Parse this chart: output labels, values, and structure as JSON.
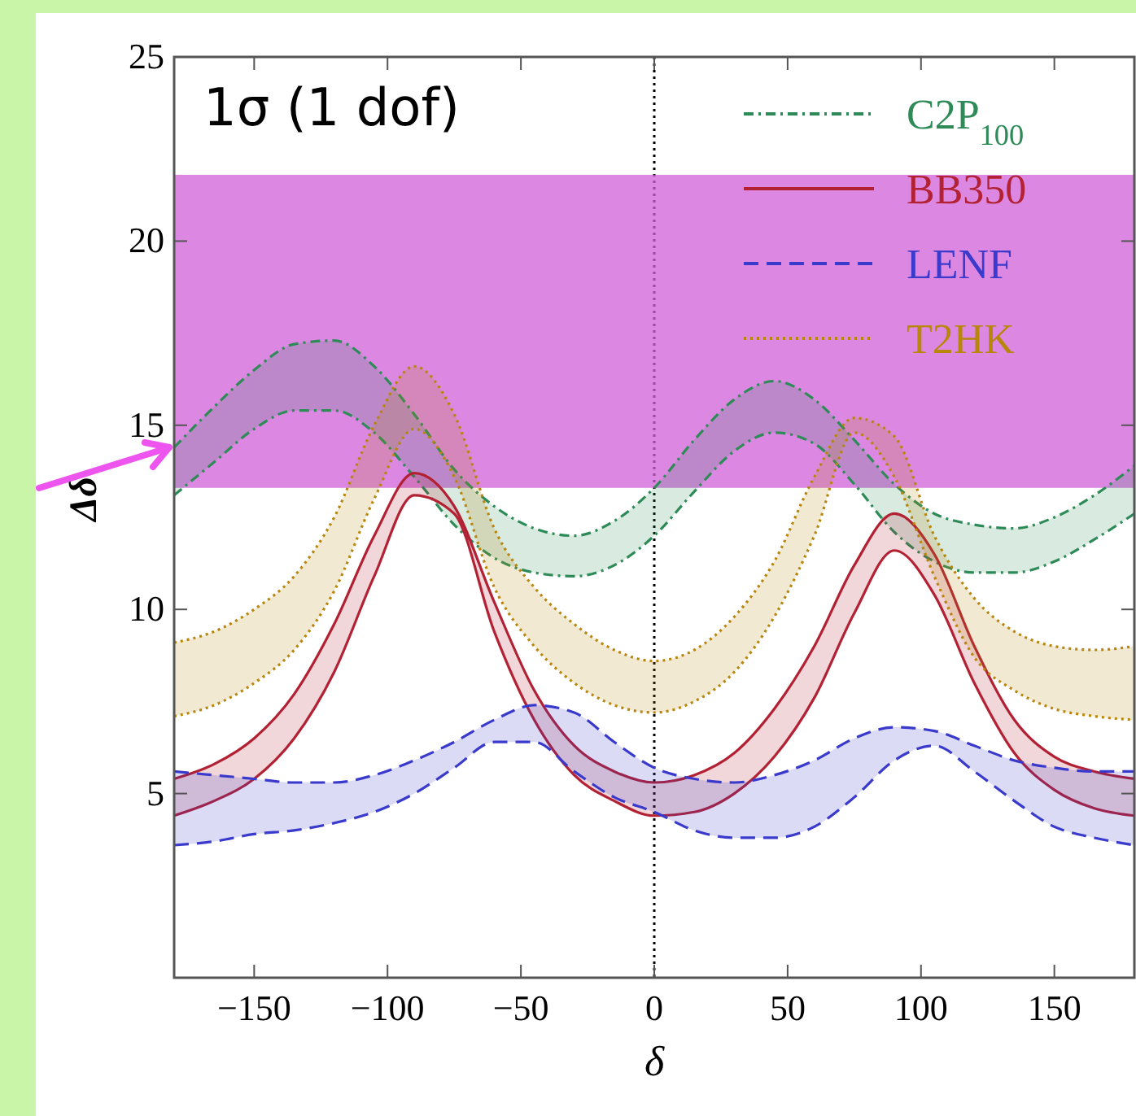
{
  "chart_data": {
    "type": "line",
    "title": "1σ (1 dof)",
    "xlabel": "δ",
    "ylabel": "Δδ",
    "x": [
      -180,
      -165,
      -150,
      -135,
      -120,
      -105,
      -90,
      -75,
      -60,
      -45,
      -30,
      -15,
      0,
      15,
      30,
      45,
      60,
      75,
      90,
      105,
      120,
      135,
      150,
      165,
      180
    ],
    "series": [
      {
        "name": "C2P$_{100}$",
        "color": "#2e8b57",
        "line_style": "dashdot",
        "values": [
          14.4,
          15.5,
          16.5,
          17.2,
          17.3,
          16.6,
          15.3,
          13.8,
          12.8,
          12.2,
          12.0,
          12.4,
          13.3,
          14.6,
          15.7,
          16.2,
          15.7,
          14.6,
          13.4,
          12.6,
          12.3,
          12.2,
          12.5,
          13.1,
          13.9
        ]
      },
      {
        "color": "#2e8b57",
        "line_style": "dashdot",
        "values": [
          13.1,
          14.0,
          14.9,
          15.4,
          15.4,
          14.8,
          13.6,
          12.3,
          11.4,
          11.0,
          10.9,
          11.2,
          12.0,
          13.2,
          14.3,
          14.8,
          14.5,
          13.4,
          12.1,
          11.3,
          11.0,
          11.0,
          11.3,
          11.9,
          12.6
        ]
      },
      {
        "name": "BB350",
        "color": "#b22234",
        "line_style": "solid",
        "values": [
          5.4,
          5.8,
          6.5,
          7.7,
          9.6,
          12.0,
          13.7,
          12.8,
          10.2,
          7.8,
          6.3,
          5.6,
          5.3,
          5.5,
          6.1,
          7.3,
          9.0,
          11.2,
          12.6,
          11.5,
          9.0,
          7.0,
          6.0,
          5.6,
          5.4
        ]
      },
      {
        "color": "#b22234",
        "line_style": "solid",
        "values": [
          4.4,
          4.8,
          5.4,
          6.5,
          8.3,
          10.9,
          13.1,
          12.6,
          9.4,
          7.0,
          5.5,
          4.8,
          4.4,
          4.5,
          5.0,
          6.0,
          7.6,
          9.9,
          11.6,
          10.4,
          8.0,
          6.1,
          5.1,
          4.6,
          4.4
        ]
      },
      {
        "name": "LENF",
        "color": "#3a3acc",
        "line_style": "dashed",
        "values": [
          5.6,
          5.5,
          5.4,
          5.3,
          5.3,
          5.5,
          5.9,
          6.4,
          7.0,
          7.4,
          7.2,
          6.4,
          5.7,
          5.4,
          5.3,
          5.5,
          5.9,
          6.5,
          6.8,
          6.7,
          6.3,
          5.9,
          5.7,
          5.6,
          5.6
        ]
      },
      {
        "color": "#3a3acc",
        "line_style": "dashed",
        "values": [
          3.6,
          3.7,
          3.9,
          4.0,
          4.2,
          4.5,
          5.0,
          5.7,
          6.4,
          6.4,
          5.6,
          4.9,
          4.5,
          4.0,
          3.8,
          3.8,
          4.1,
          4.9,
          5.9,
          6.3,
          5.6,
          4.8,
          4.1,
          3.8,
          3.6
        ]
      },
      {
        "name": "T2HK",
        "color": "#b8860b",
        "line_style": "dotted",
        "values": [
          9.1,
          9.4,
          10.0,
          10.9,
          12.5,
          15.0,
          16.6,
          15.3,
          12.2,
          10.6,
          9.6,
          8.9,
          8.6,
          8.9,
          9.8,
          11.3,
          13.6,
          15.2,
          14.7,
          12.0,
          10.3,
          9.4,
          9.0,
          8.9,
          9.0
        ]
      },
      {
        "color": "#b8860b",
        "line_style": "dotted",
        "values": [
          7.1,
          7.4,
          8.0,
          8.9,
          10.5,
          13.0,
          14.9,
          13.6,
          10.6,
          9.0,
          8.0,
          7.4,
          7.2,
          7.5,
          8.3,
          9.8,
          12.0,
          14.8,
          13.6,
          10.9,
          8.7,
          7.8,
          7.3,
          7.1,
          7.0
        ]
      }
    ],
    "xlim": [
      -180,
      180
    ],
    "xticks": [
      {
        "value": -150,
        "label": "−150"
      },
      {
        "value": -100,
        "label": "−100"
      },
      {
        "value": -50,
        "label": "−50"
      },
      0,
      50,
      100,
      150
    ],
    "ylim": [
      0,
      25
    ],
    "yticks": [
      5,
      10,
      15,
      20,
      25
    ],
    "ref_lines": [
      {
        "axis": "x",
        "value": 0,
        "line_style": "dotted",
        "color": "#000000"
      }
    ],
    "bands": [
      {
        "axis": "y",
        "from": 13.3,
        "to": 21.8,
        "color": "#d060d8"
      }
    ],
    "legend": "top right"
  }
}
